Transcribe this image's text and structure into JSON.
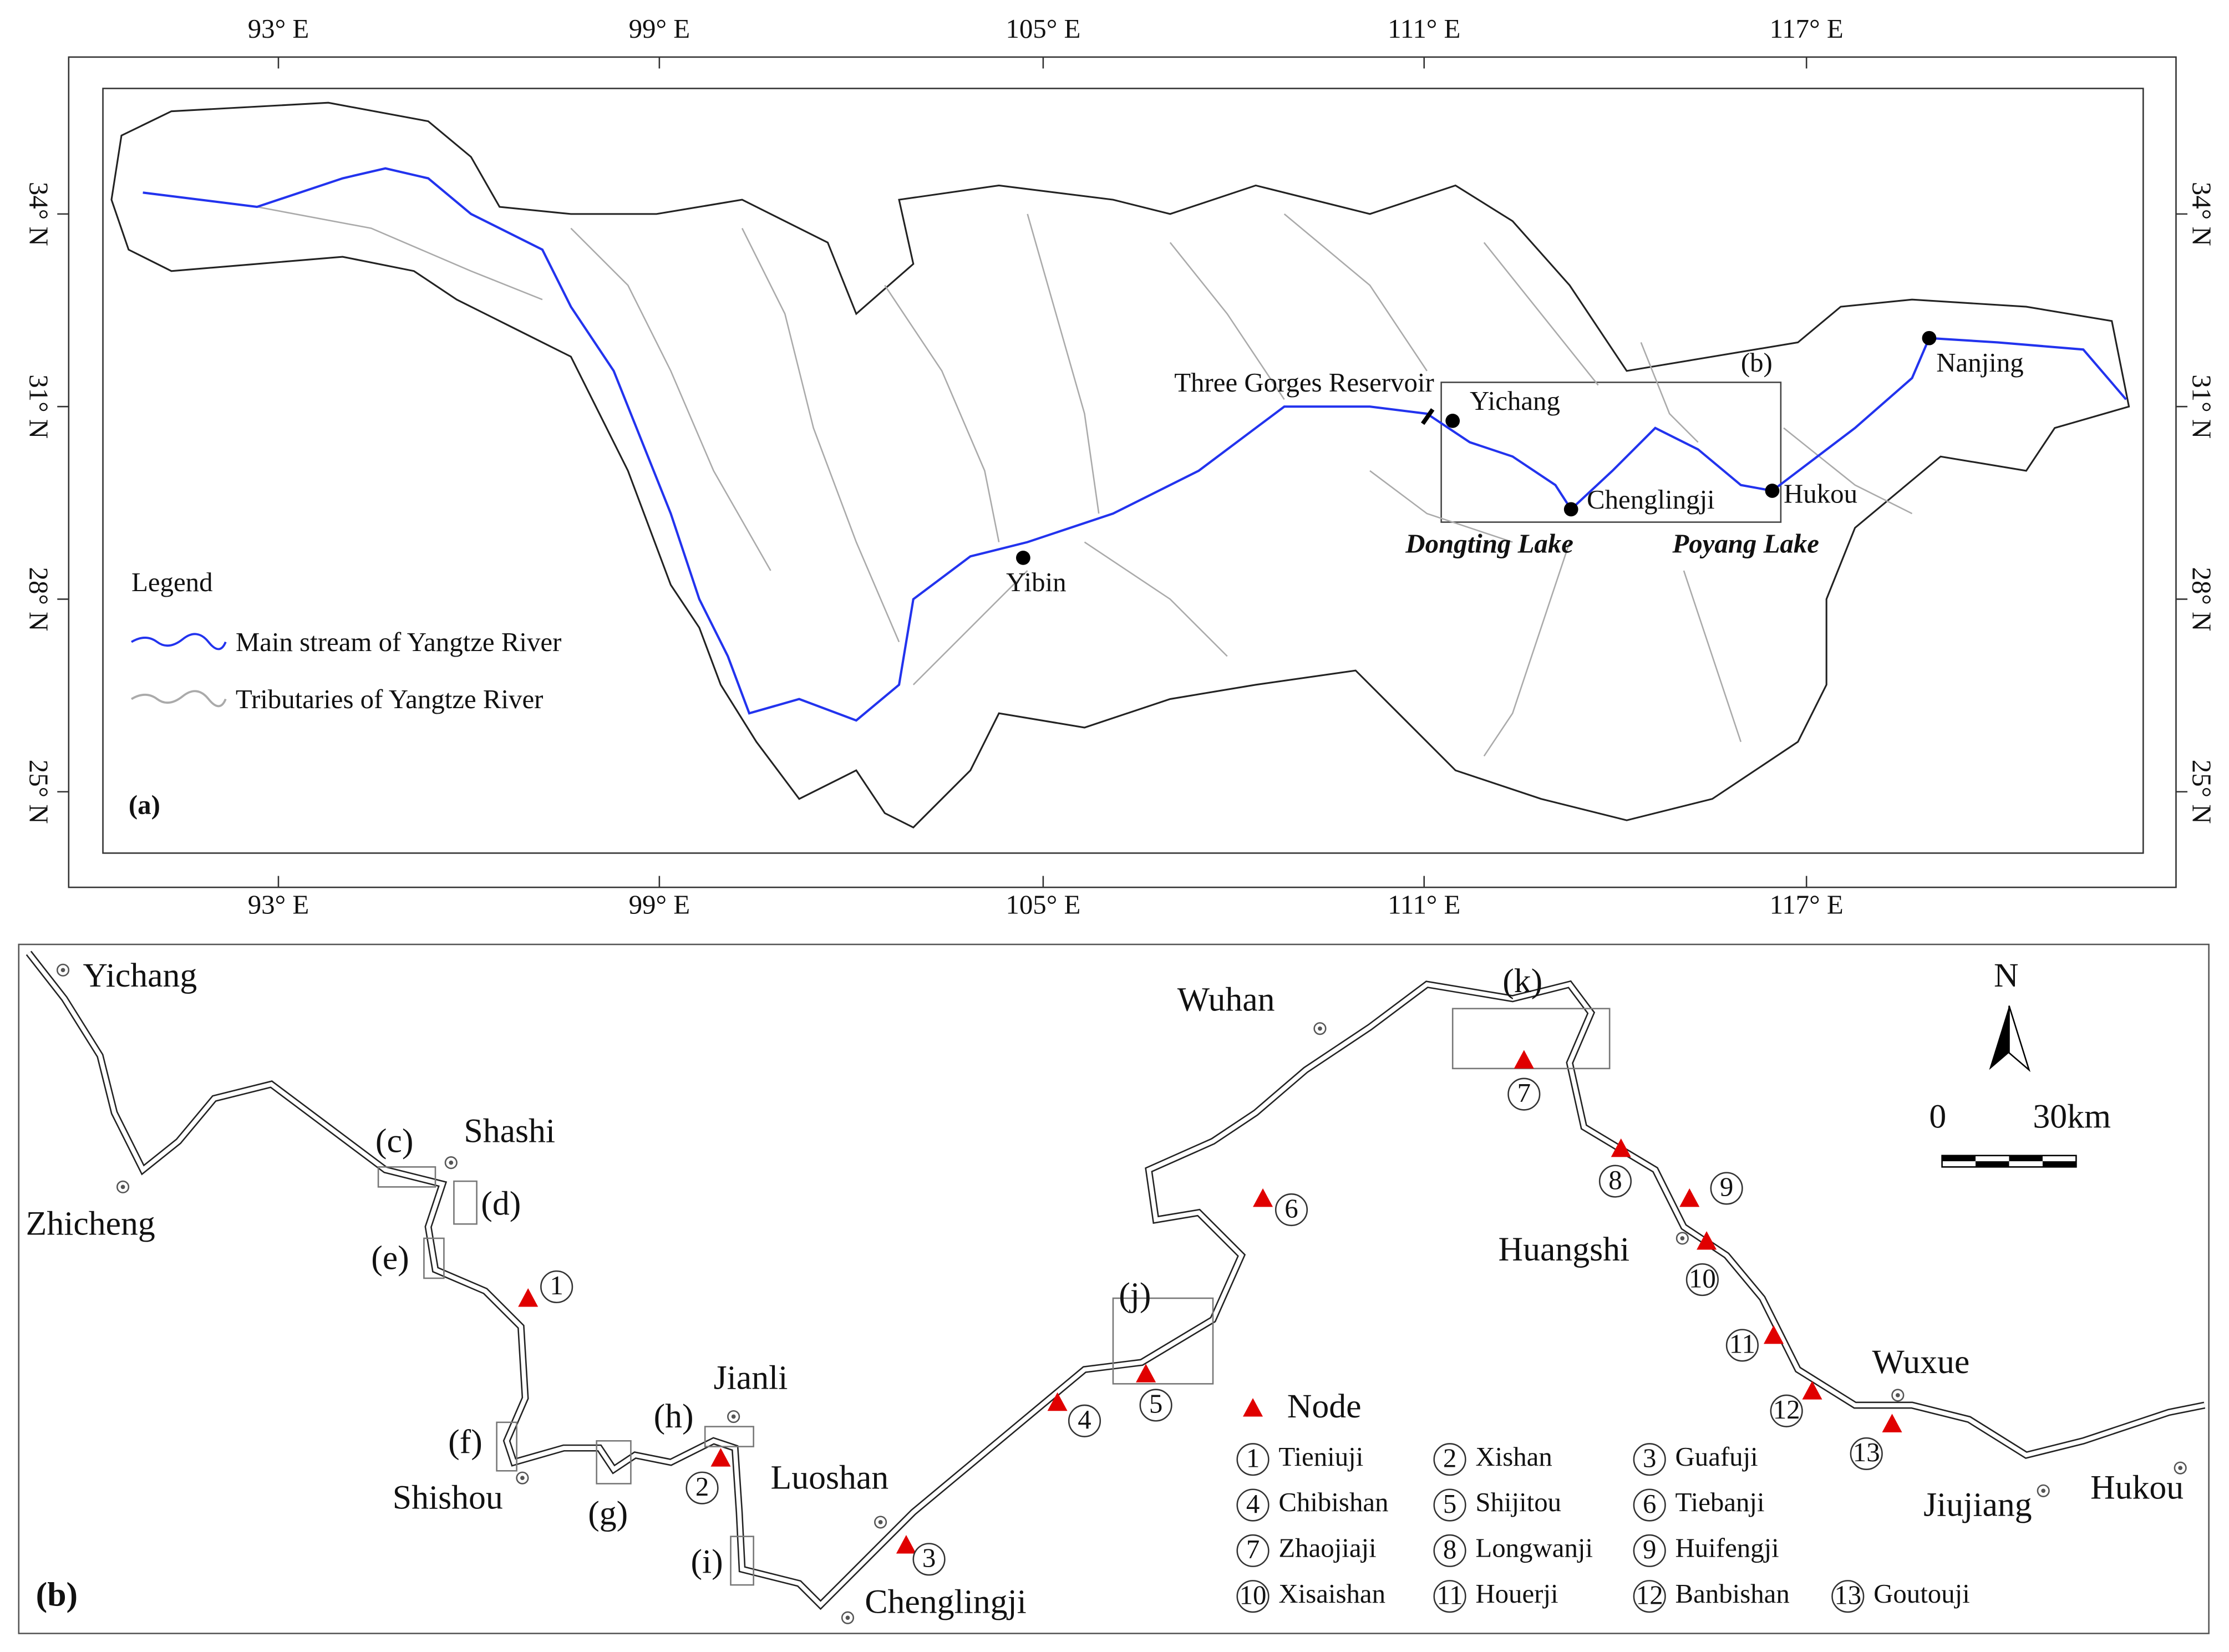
{
  "panel_a": {
    "label": "(a)",
    "lon_labels": [
      "93° E",
      "99° E",
      "105° E",
      "111° E",
      "117° E"
    ],
    "lat_labels": [
      "34° N",
      "31° N",
      "28° N",
      "25° N"
    ],
    "legend": {
      "title": "Legend",
      "items": [
        "Main stream of Yangtze River",
        "Tributaries of Yangtze River"
      ]
    },
    "places": [
      "Yibin",
      "Yichang",
      "Chenglingji",
      "Hukou",
      "Nanjing"
    ],
    "reservoir": "Three Gorges Reservoir",
    "lakes": [
      "Dongting Lake",
      "Poyang Lake"
    ],
    "inset_label": "(b)"
  },
  "panel_b": {
    "label": "(b)",
    "cities": [
      "Yichang",
      "Shashi",
      "Zhicheng",
      "Shishou",
      "Jianli",
      "Luoshan",
      "Chenglingji",
      "Wuhan",
      "Huangshi",
      "Wuxue",
      "Jiujiang",
      "Hukou"
    ],
    "boxes": [
      "(c)",
      "(d)",
      "(e)",
      "(f)",
      "(g)",
      "(h)",
      "(i)",
      "(j)",
      "(k)"
    ],
    "legend_title": "Node",
    "nodes": [
      {
        "number": "1",
        "name": "Tieniuji"
      },
      {
        "number": "2",
        "name": "Xishan"
      },
      {
        "number": "3",
        "name": "Guafuji"
      },
      {
        "number": "4",
        "name": "Chibishan"
      },
      {
        "number": "5",
        "name": "Shijitou"
      },
      {
        "number": "6",
        "name": "Tiebanji"
      },
      {
        "number": "7",
        "name": "Zhaojiaji"
      },
      {
        "number": "8",
        "name": "Longwanji"
      },
      {
        "number": "9",
        "name": "Huifengji"
      },
      {
        "number": "10",
        "name": "Xisaishan"
      },
      {
        "number": "11",
        "name": "Houerji"
      },
      {
        "number": "12",
        "name": "Banbishan"
      },
      {
        "number": "13",
        "name": "Goutouji"
      }
    ],
    "north": "N",
    "scale_labels": [
      "0",
      "30km"
    ]
  }
}
